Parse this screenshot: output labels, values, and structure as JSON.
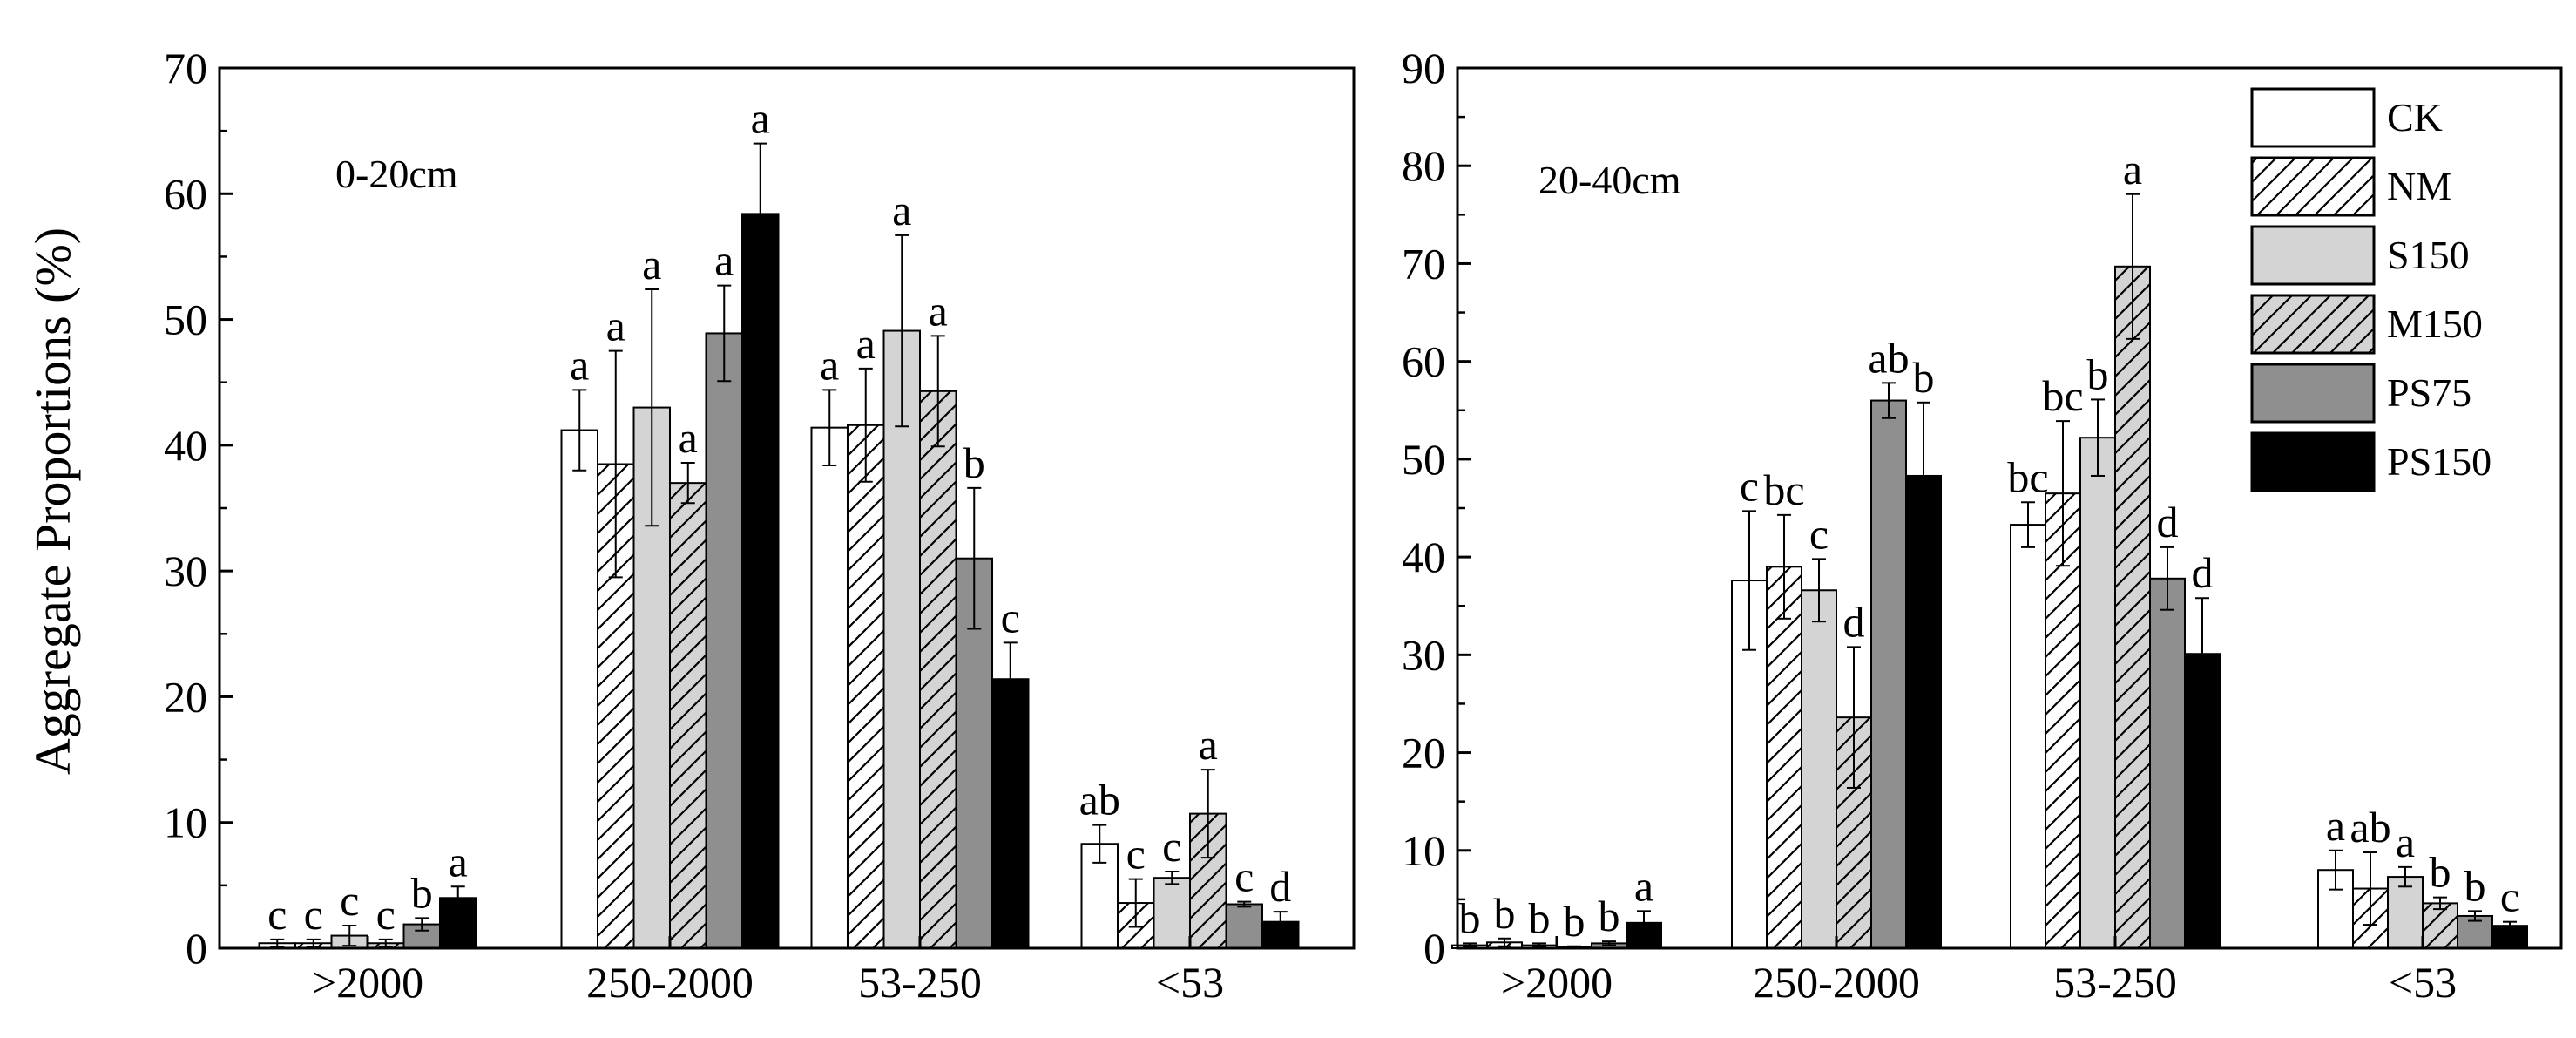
{
  "chart_data": [
    {
      "type": "bar",
      "panel_label": "0-20cm",
      "ylabel": "Aggregate Proportions (%)",
      "ylim": [
        0,
        70
      ],
      "yticks": [
        "0",
        "10",
        "20",
        "30",
        "40",
        "50",
        "60",
        "70"
      ],
      "categories": [
        ">2000",
        "250-2000",
        "53-250",
        "<53"
      ],
      "series": [
        {
          "name": "CK",
          "values": [
            0.4,
            41.2,
            41.4,
            8.3
          ],
          "errors": [
            0.3,
            3.2,
            3.0,
            1.5
          ],
          "letters": [
            "c",
            "a",
            "a",
            "ab"
          ]
        },
        {
          "name": "NM",
          "values": [
            0.4,
            38.5,
            41.6,
            3.6
          ],
          "errors": [
            0.3,
            9.0,
            4.5,
            1.9
          ],
          "letters": [
            "c",
            "a",
            "a",
            "c"
          ]
        },
        {
          "name": "S150",
          "values": [
            1.0,
            43.0,
            49.1,
            5.6
          ],
          "errors": [
            0.8,
            9.4,
            7.6,
            0.5
          ],
          "letters": [
            "c",
            "a",
            "a",
            "c"
          ]
        },
        {
          "name": "M150",
          "values": [
            0.4,
            37.0,
            44.3,
            10.7
          ],
          "errors": [
            0.3,
            1.6,
            4.4,
            3.5
          ],
          "letters": [
            "c",
            "a",
            "a",
            "a"
          ]
        },
        {
          "name": "PS75",
          "values": [
            1.9,
            48.9,
            31.0,
            3.5
          ],
          "errors": [
            0.5,
            3.8,
            5.6,
            0.2
          ],
          "letters": [
            "b",
            "a",
            "b",
            "c"
          ]
        },
        {
          "name": "PS150",
          "values": [
            4.0,
            58.4,
            21.4,
            2.1
          ],
          "errors": [
            0.9,
            5.6,
            2.9,
            0.8
          ],
          "letters": [
            "a",
            "a",
            "c",
            "d"
          ]
        }
      ]
    },
    {
      "type": "bar",
      "panel_label": "20-40cm",
      "ylim": [
        0,
        90
      ],
      "yticks": [
        "0",
        "10",
        "20",
        "30",
        "40",
        "50",
        "60",
        "70",
        "80",
        "90"
      ],
      "categories": [
        ">2000",
        "250-2000",
        "53-250",
        "<53"
      ],
      "series": [
        {
          "name": "CK",
          "values": [
            0.3,
            37.6,
            43.3,
            8.0
          ],
          "errors": [
            0.2,
            7.1,
            2.3,
            2.0
          ],
          "letters": [
            "b",
            "c",
            "bc",
            "a"
          ]
        },
        {
          "name": "NM",
          "values": [
            0.6,
            39.0,
            46.5,
            6.1
          ],
          "errors": [
            0.4,
            5.3,
            7.4,
            3.7
          ],
          "letters": [
            "b",
            "bc",
            "bc",
            "ab"
          ]
        },
        {
          "name": "S150",
          "values": [
            0.3,
            36.6,
            52.2,
            7.3
          ],
          "errors": [
            0.2,
            3.2,
            3.9,
            1.0
          ],
          "letters": [
            "b",
            "c",
            "b",
            "a"
          ]
        },
        {
          "name": "M150",
          "values": [
            0.1,
            23.6,
            69.7,
            4.6
          ],
          "errors": [
            0.1,
            7.2,
            7.4,
            0.6
          ],
          "letters": [
            "b",
            "d",
            "a",
            "b"
          ]
        },
        {
          "name": "PS75",
          "values": [
            0.5,
            56.0,
            37.8,
            3.3
          ],
          "errors": [
            0.2,
            1.8,
            3.2,
            0.5
          ],
          "letters": [
            "b",
            "ab",
            "d",
            "b"
          ]
        },
        {
          "name": "PS150",
          "values": [
            2.6,
            48.3,
            30.1,
            2.3
          ],
          "errors": [
            1.2,
            7.5,
            5.7,
            0.4
          ],
          "letters": [
            "a",
            "b",
            "d",
            "c"
          ]
        }
      ]
    }
  ],
  "legend": [
    {
      "label": "CK",
      "fill": "#ffffff",
      "hatch": false
    },
    {
      "label": "NM",
      "fill": "#ffffff",
      "hatch": true
    },
    {
      "label": "S150",
      "fill": "#d4d4d4",
      "hatch": false
    },
    {
      "label": "M150",
      "fill": "#d4d4d4",
      "hatch": true
    },
    {
      "label": "PS75",
      "fill": "#8f8f8f",
      "hatch": false
    },
    {
      "label": "PS150",
      "fill": "#000000",
      "hatch": false
    }
  ]
}
